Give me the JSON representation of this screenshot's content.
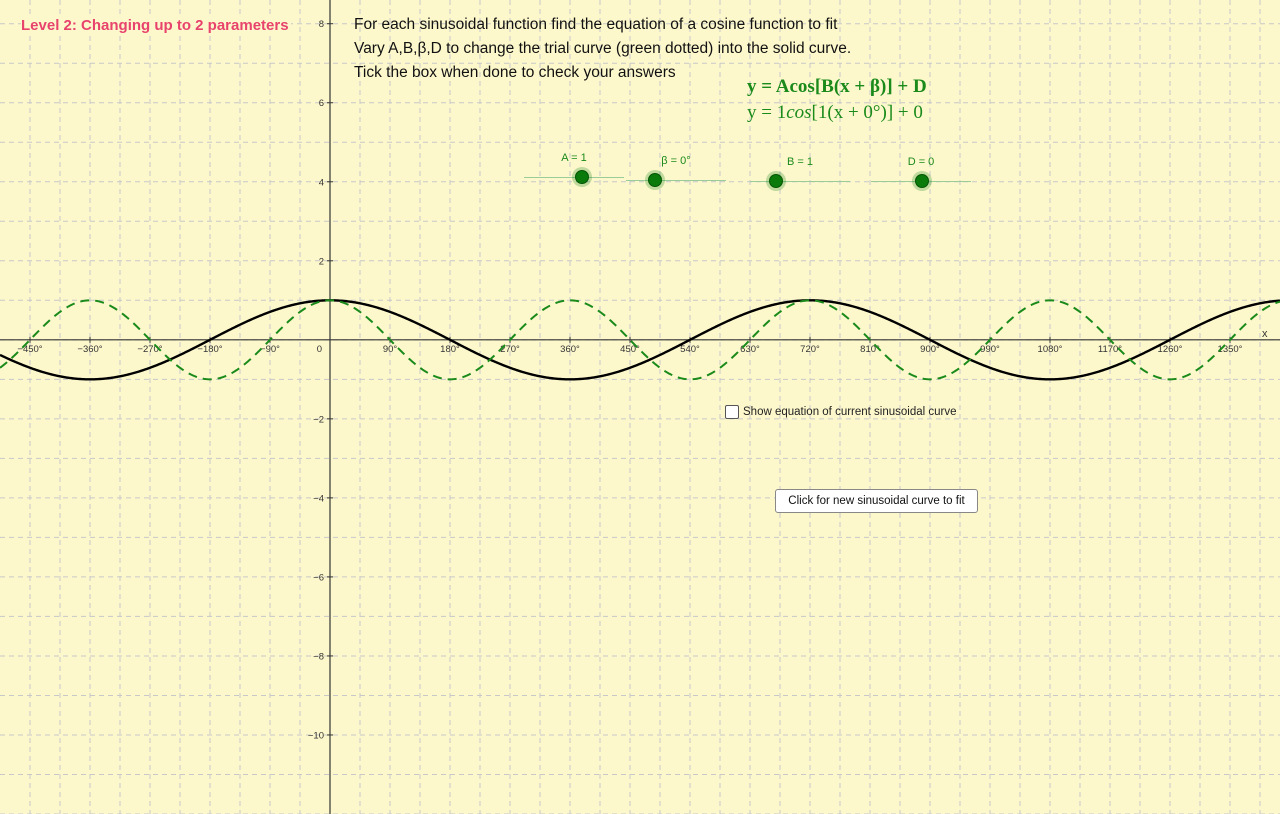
{
  "level_title": "Level 2: Changing up to 2 parameters",
  "instructions": [
    "For each sinusoidal function find the equation of a cosine function to fit",
    "Vary A,B,β,D to change the trial curve (green dotted) into the solid curve.",
    "Tick the box when done to check your answers"
  ],
  "equation_general": "y = Acos[B(x + β)] + D",
  "equation_current": {
    "prefix": "y = 1",
    "func": "cos",
    "suffix": "[1(x + 0°)] + 0"
  },
  "sliders": [
    {
      "label": "A = 1",
      "value": 1
    },
    {
      "label": "β = 0°",
      "value": 0
    },
    {
      "label": "B = 1",
      "value": 1
    },
    {
      "label": "D = 0",
      "value": 0
    }
  ],
  "checkbox_label": "Show equation of current sinusoidal curve",
  "checkbox_checked": false,
  "new_curve_button": "Click for new sinusoidal curve to fit",
  "x_axis_label": "x",
  "x_ticks": [
    "−450°",
    "−360°",
    "−270°",
    "−180°",
    "−90°",
    "0",
    "90°",
    "180°",
    "270°",
    "360°",
    "450°",
    "540°",
    "630°",
    "720°",
    "810°",
    "900°",
    "990°",
    "1080°",
    "1170°",
    "1260°",
    "1350°"
  ],
  "y_ticks": [
    "8",
    "6",
    "4",
    "2",
    "−2",
    "−4",
    "−6",
    "−8",
    "−10"
  ],
  "colors": {
    "background": "#fdf8cc",
    "title": "#e8436d",
    "trial_curve": "#1a8a1a",
    "target_curve": "#000000"
  },
  "chart_data": {
    "type": "line",
    "x_unit": "degrees",
    "xlim": [
      -495,
      1425
    ],
    "ylim": [
      -12,
      8.6
    ],
    "grid": true,
    "series": [
      {
        "function": "y = 1cos[1(x + 0°)] + 0",
        "style": "dashed",
        "color": "#1a8a1a",
        "A": 1,
        "B": 1,
        "beta": 0,
        "D": 0
      },
      {
        "style": "solid",
        "color": "#000000",
        "A": 1,
        "B": 0.5,
        "beta": 0,
        "D": 0
      }
    ]
  }
}
